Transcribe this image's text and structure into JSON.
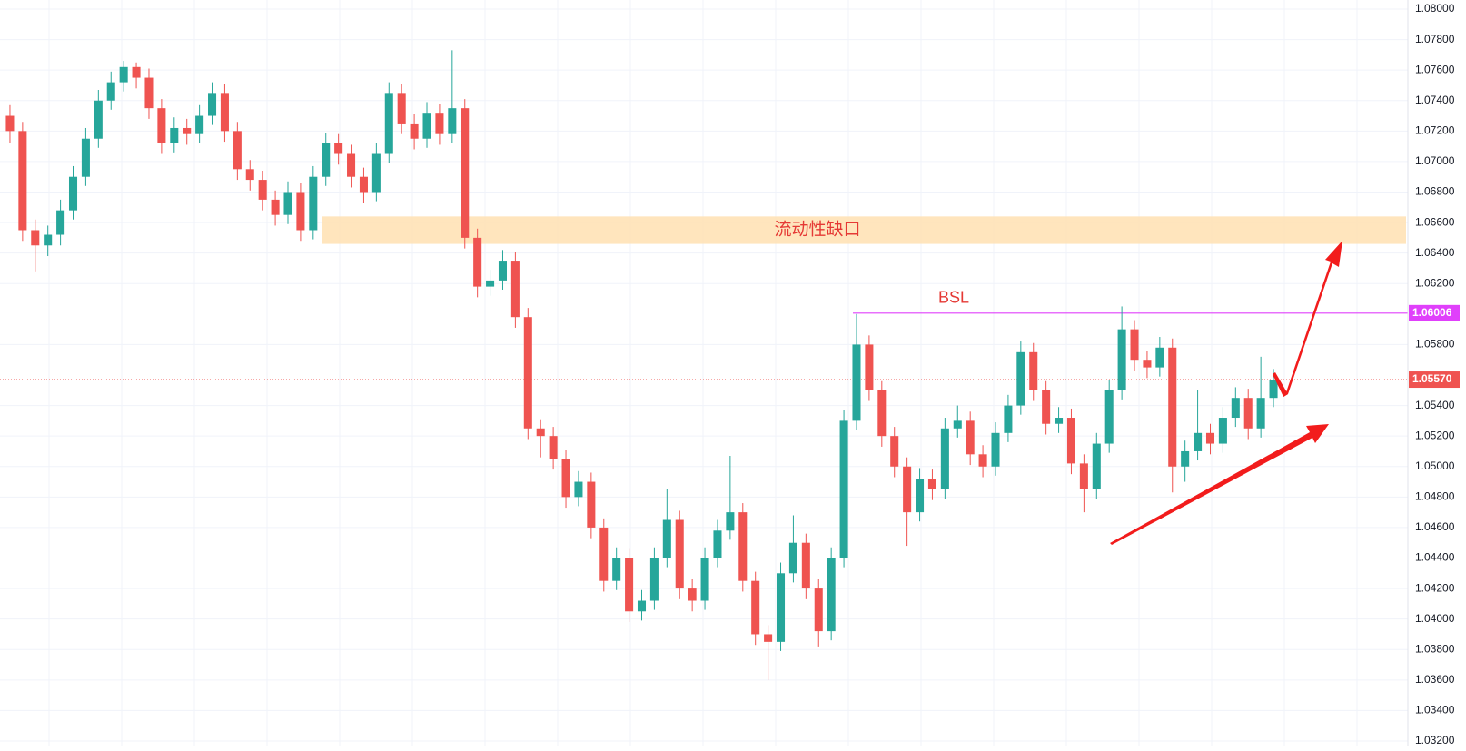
{
  "chart_data": {
    "type": "candlestick",
    "up_color": "#26a69a",
    "down_color": "#ef5350",
    "open": [
      1.073,
      1.072,
      1.0655,
      1.0645,
      1.0652,
      1.0668,
      1.069,
      1.0715,
      1.074,
      1.0752,
      1.0762,
      1.0755,
      1.0735,
      1.0712,
      1.0722,
      1.0718,
      1.073,
      1.0745,
      1.072,
      1.0695,
      1.0688,
      1.0675,
      1.0665,
      1.068,
      1.0655,
      1.069,
      1.0712,
      1.0705,
      1.069,
      1.068,
      1.0705,
      1.0745,
      1.0725,
      1.0715,
      1.0732,
      1.0718,
      1.0735,
      1.065,
      1.0618,
      1.0622,
      1.0635,
      1.0598,
      1.0525,
      1.052,
      1.0505,
      1.048,
      1.049,
      1.046,
      1.0425,
      1.044,
      1.0405,
      1.0412,
      1.044,
      1.0465,
      1.042,
      1.0412,
      1.044,
      1.0458,
      1.047,
      1.0425,
      1.039,
      1.0385,
      1.043,
      1.045,
      1.042,
      1.0392,
      1.044,
      1.053,
      1.058,
      1.055,
      1.052,
      1.05,
      1.047,
      1.0492,
      1.0485,
      1.0525,
      1.053,
      1.0508,
      1.05,
      1.0522,
      1.054,
      1.0575,
      1.055,
      1.0528,
      1.0532,
      1.0502,
      1.0485,
      1.0515,
      1.055,
      1.059,
      1.057,
      1.0565,
      1.0578,
      1.05,
      1.051,
      1.0522,
      1.0515,
      1.0532,
      1.0545,
      1.0525,
      1.0545
    ],
    "high": [
      1.0737,
      1.0726,
      1.0662,
      1.0658,
      1.0675,
      1.0697,
      1.0722,
      1.0747,
      1.0759,
      1.0766,
      1.0765,
      1.0761,
      1.0741,
      1.0729,
      1.0728,
      1.0737,
      1.0752,
      1.0751,
      1.0726,
      1.0701,
      1.0694,
      1.0681,
      1.0687,
      1.0686,
      1.0697,
      1.0719,
      1.0718,
      1.0711,
      1.0696,
      1.0712,
      1.0752,
      1.0751,
      1.0731,
      1.0739,
      1.0738,
      1.0773,
      1.0741,
      1.0656,
      1.0629,
      1.0642,
      1.0641,
      1.0604,
      1.0531,
      1.0526,
      1.0511,
      1.0497,
      1.0496,
      1.0466,
      1.0447,
      1.0446,
      1.0419,
      1.0447,
      1.0485,
      1.0471,
      1.0426,
      1.0447,
      1.0465,
      1.0507,
      1.0476,
      1.0431,
      1.0396,
      1.0437,
      1.0468,
      1.0456,
      1.0426,
      1.0447,
      1.0537,
      1.06,
      1.0586,
      1.0556,
      1.0526,
      1.0506,
      1.0499,
      1.0498,
      1.0532,
      1.054,
      1.0536,
      1.0514,
      1.0529,
      1.0547,
      1.0582,
      1.0581,
      1.0556,
      1.0539,
      1.0538,
      1.0508,
      1.0522,
      1.0557,
      1.0605,
      1.0596,
      1.0576,
      1.0585,
      1.0584,
      1.0517,
      1.055,
      1.0528,
      1.0539,
      1.0552,
      1.0551,
      1.0572,
      1.0564
    ],
    "low": [
      1.0712,
      1.0648,
      1.0628,
      1.0638,
      1.0645,
      1.0662,
      1.0684,
      1.0709,
      1.0734,
      1.0746,
      1.0748,
      1.0728,
      1.0705,
      1.0706,
      1.0711,
      1.0712,
      1.0724,
      1.0713,
      1.0688,
      1.0681,
      1.0668,
      1.0658,
      1.0659,
      1.0648,
      1.0649,
      1.0684,
      1.0698,
      1.0683,
      1.0673,
      1.0674,
      1.0699,
      1.0718,
      1.0708,
      1.0709,
      1.0711,
      1.0712,
      1.0643,
      1.0611,
      1.0612,
      1.0616,
      1.0591,
      1.0518,
      1.0506,
      1.0498,
      1.0473,
      1.0474,
      1.0453,
      1.0418,
      1.0419,
      1.0398,
      1.0399,
      1.0406,
      1.0434,
      1.0413,
      1.0405,
      1.0406,
      1.0434,
      1.0452,
      1.0418,
      1.0383,
      1.036,
      1.0379,
      1.0424,
      1.0413,
      1.0382,
      1.0386,
      1.0434,
      1.0524,
      1.0543,
      1.0513,
      1.0493,
      1.0448,
      1.0464,
      1.0478,
      1.0479,
      1.0519,
      1.0501,
      1.0493,
      1.0494,
      1.0516,
      1.0534,
      1.0543,
      1.0521,
      1.0522,
      1.0495,
      1.047,
      1.0479,
      1.0509,
      1.0544,
      1.0563,
      1.0558,
      1.0559,
      1.0483,
      1.049,
      1.0504,
      1.0508,
      1.0509,
      1.0526,
      1.0518,
      1.0519,
      1.0539
    ],
    "close": [
      1.072,
      1.0655,
      1.0645,
      1.0652,
      1.0668,
      1.069,
      1.0715,
      1.074,
      1.0752,
      1.0762,
      1.0755,
      1.0735,
      1.0712,
      1.0722,
      1.0718,
      1.073,
      1.0745,
      1.072,
      1.0695,
      1.0688,
      1.0675,
      1.0665,
      1.068,
      1.0655,
      1.069,
      1.0712,
      1.0705,
      1.069,
      1.068,
      1.0705,
      1.0745,
      1.0725,
      1.0715,
      1.0732,
      1.0718,
      1.0735,
      1.065,
      1.0618,
      1.0622,
      1.0635,
      1.0598,
      1.0525,
      1.052,
      1.0505,
      1.048,
      1.049,
      1.046,
      1.0425,
      1.044,
      1.0405,
      1.0412,
      1.044,
      1.0465,
      1.042,
      1.0412,
      1.044,
      1.0458,
      1.047,
      1.0425,
      1.039,
      1.0385,
      1.043,
      1.045,
      1.042,
      1.0392,
      1.044,
      1.053,
      1.058,
      1.055,
      1.052,
      1.05,
      1.047,
      1.0492,
      1.0485,
      1.0525,
      1.053,
      1.0508,
      1.05,
      1.0522,
      1.054,
      1.0575,
      1.055,
      1.0528,
      1.0532,
      1.0502,
      1.0485,
      1.0515,
      1.055,
      1.059,
      1.057,
      1.0565,
      1.0578,
      1.05,
      1.051,
      1.0522,
      1.0515,
      1.0532,
      1.0545,
      1.0525,
      1.0545,
      1.0557
    ],
    "ylim": [
      1.032,
      1.08
    ],
    "yticks": [
      {
        "value": 1.032,
        "label": "1.03200"
      },
      {
        "value": 1.034,
        "label": "1.03400"
      },
      {
        "value": 1.036,
        "label": "1.03600"
      },
      {
        "value": 1.038,
        "label": "1.03800"
      },
      {
        "value": 1.04,
        "label": "1.04000"
      },
      {
        "value": 1.042,
        "label": "1.04200"
      },
      {
        "value": 1.044,
        "label": "1.04400"
      },
      {
        "value": 1.046,
        "label": "1.04600"
      },
      {
        "value": 1.048,
        "label": "1.04800"
      },
      {
        "value": 1.05,
        "label": "1.05000"
      },
      {
        "value": 1.052,
        "label": "1.05200"
      },
      {
        "value": 1.054,
        "label": "1.05400"
      },
      {
        "value": 1.058,
        "label": "1.05800"
      },
      {
        "value": 1.062,
        "label": "1.06200"
      },
      {
        "value": 1.064,
        "label": "1.06400"
      },
      {
        "value": 1.066,
        "label": "1.06600"
      },
      {
        "value": 1.068,
        "label": "1.06800"
      },
      {
        "value": 1.07,
        "label": "1.07000"
      },
      {
        "value": 1.072,
        "label": "1.07200"
      },
      {
        "value": 1.074,
        "label": "1.07400"
      },
      {
        "value": 1.076,
        "label": "1.07600"
      },
      {
        "value": 1.078,
        "label": "1.07800"
      },
      {
        "value": 1.08,
        "label": "1.08000"
      }
    ],
    "grid": true,
    "zone": {
      "label": "流动性缺口",
      "from": 1.0646,
      "to": 1.0664,
      "color": "#ffe0b2"
    },
    "bsl": {
      "label": "BSL",
      "price": 1.06006,
      "color": "#e040fb"
    },
    "last_price": {
      "value": 1.0557,
      "label": "1.05570",
      "color": "#ef5350"
    }
  }
}
